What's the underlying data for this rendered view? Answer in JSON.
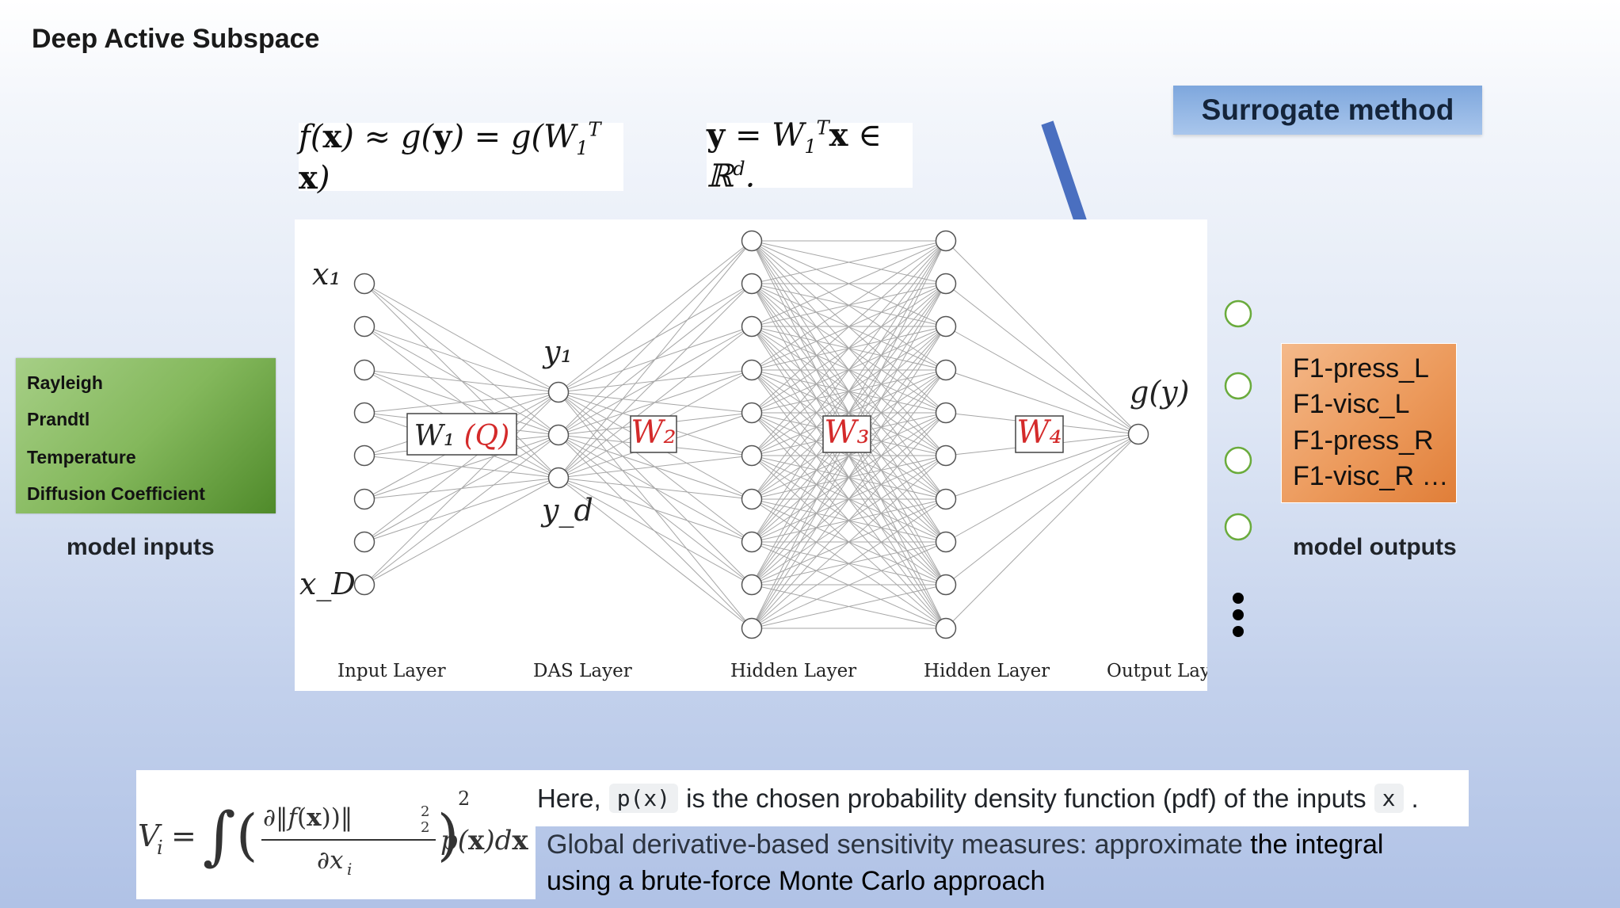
{
  "title": "Deep Active Subspace",
  "surrogate_label": "Surrogate method",
  "eq_fx": "f(x) ≈ g(y) = g(W₁ᵀ x)",
  "eq_y": "y = W₁ᵀx ∈ ℝᵈ.",
  "network": {
    "layers": [
      "Input Layer",
      "DAS Layer",
      "Hidden Layer",
      "Hidden Layer",
      "Output Layer"
    ],
    "weights": [
      "W₁ (Q)",
      "W₂",
      "W₃",
      "W₄"
    ],
    "node_labels": {
      "x_top": "x₁",
      "x_bottom": "x_D",
      "y_top": "y₁",
      "y_bottom": "y_d",
      "output": "g(y)"
    },
    "layer_sizes": [
      8,
      3,
      10,
      10,
      1
    ]
  },
  "model_inputs": {
    "items": [
      "Rayleigh",
      "Prandtl",
      "Temperature",
      "Diffusion Coefficient"
    ],
    "caption": "model inputs"
  },
  "model_outputs": {
    "items": [
      "F1-press_L",
      "F1-visc_L",
      "F1-press_R",
      "F1-visc_R …"
    ],
    "caption": "model outputs"
  },
  "colors": {
    "arrow": "#4a6fc0",
    "weight_red": "#d42a2a",
    "output_node_outline": "#6aab3c"
  },
  "equation_V": "Vᵢ = ∫ ( ∂‖f(x))‖²₂ / ∂xᵢ )² p(x)dx",
  "note": {
    "prefix": "Here,",
    "code1": "p(x)",
    "middle": "is the chosen probability density function (pdf) of the inputs",
    "code2": "x",
    "suffix": "."
  },
  "global_text": {
    "part1": "Global derivative-based sensitivity measures: approximate",
    "part2": "the integral",
    "line2": "using a brute-force Monte Carlo approach"
  }
}
